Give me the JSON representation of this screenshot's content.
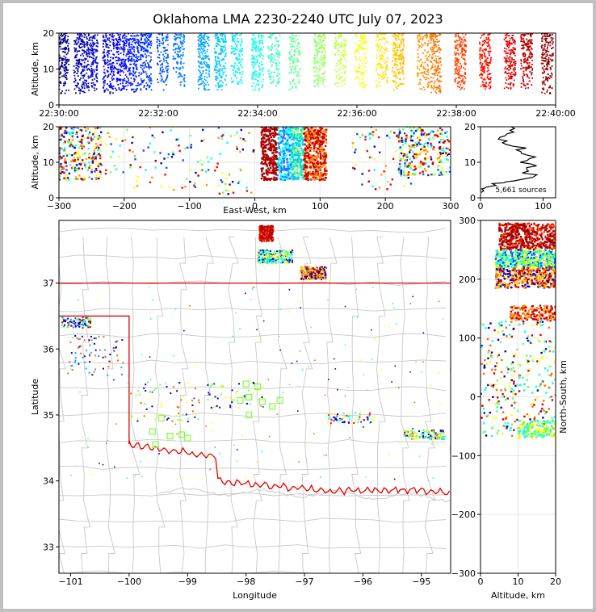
{
  "title": "Oklahoma LMA 2230-2240 UTC July 07, 2023",
  "chart_data": [
    {
      "panel": "altitude-time",
      "type": "scatter",
      "x_ticks": [
        "22:30:00",
        "22:32:00",
        "22:34:00",
        "22:36:00",
        "22:38:00",
        "22:40:00"
      ],
      "xlim": [
        "22:30:00",
        "22:40:00"
      ],
      "ylabel": "Altitude, km",
      "ylim": [
        0,
        20
      ],
      "y_ticks": [
        0,
        10,
        20
      ],
      "color_by": "time",
      "colormap": "jet",
      "bursts": [
        {
          "t": "22:30:05",
          "alt_range": [
            3,
            20
          ],
          "count": "high"
        },
        {
          "t": "22:30:25",
          "alt_range": [
            3,
            20
          ],
          "count": "high"
        },
        {
          "t": "22:30:40",
          "alt_range": [
            4,
            20
          ],
          "count": "high"
        },
        {
          "t": "22:31:00",
          "alt_range": [
            3,
            20
          ],
          "count": "high"
        },
        {
          "t": "22:31:15",
          "alt_range": [
            4,
            20
          ],
          "count": "high"
        },
        {
          "t": "22:31:30",
          "alt_range": [
            3,
            20
          ],
          "count": "high"
        },
        {
          "t": "22:31:45",
          "alt_range": [
            4,
            20
          ],
          "count": "high"
        },
        {
          "t": "22:32:05",
          "alt_range": [
            4,
            20
          ],
          "count": "medium"
        },
        {
          "t": "22:32:25",
          "alt_range": [
            5,
            20
          ],
          "count": "medium"
        },
        {
          "t": "22:32:55",
          "alt_range": [
            4,
            20
          ],
          "count": "high"
        },
        {
          "t": "22:33:15",
          "alt_range": [
            4,
            20
          ],
          "count": "high"
        },
        {
          "t": "22:33:35",
          "alt_range": [
            5,
            20
          ],
          "count": "medium"
        },
        {
          "t": "22:34:00",
          "alt_range": [
            4,
            20
          ],
          "count": "high"
        },
        {
          "t": "22:34:20",
          "alt_range": [
            5,
            20
          ],
          "count": "medium"
        },
        {
          "t": "22:34:45",
          "alt_range": [
            4,
            20
          ],
          "count": "medium"
        },
        {
          "t": "22:35:15",
          "alt_range": [
            5,
            20
          ],
          "count": "high"
        },
        {
          "t": "22:35:40",
          "alt_range": [
            5,
            20
          ],
          "count": "medium"
        },
        {
          "t": "22:36:05",
          "alt_range": [
            4,
            20
          ],
          "count": "medium"
        },
        {
          "t": "22:36:30",
          "alt_range": [
            5,
            20
          ],
          "count": "medium"
        },
        {
          "t": "22:36:50",
          "alt_range": [
            4,
            20
          ],
          "count": "high"
        },
        {
          "t": "22:37:20",
          "alt_range": [
            4,
            20
          ],
          "count": "medium"
        },
        {
          "t": "22:37:35",
          "alt_range": [
            3,
            20
          ],
          "count": "high"
        },
        {
          "t": "22:38:05",
          "alt_range": [
            4,
            20
          ],
          "count": "high"
        },
        {
          "t": "22:38:35",
          "alt_range": [
            4,
            20
          ],
          "count": "high"
        },
        {
          "t": "22:39:05",
          "alt_range": [
            4,
            20
          ],
          "count": "high"
        },
        {
          "t": "22:39:25",
          "alt_range": [
            4,
            20
          ],
          "count": "high"
        },
        {
          "t": "22:39:50",
          "alt_range": [
            3,
            20
          ],
          "count": "high"
        }
      ]
    },
    {
      "panel": "altitude-eastwest",
      "type": "scatter",
      "xlabel": "East-West, km",
      "xlim": [
        -300,
        300
      ],
      "x_ticks": [
        -300,
        -200,
        -100,
        0,
        100,
        200,
        300
      ],
      "ylabel": "Altitude, km",
      "ylim": [
        0,
        20
      ],
      "y_ticks": [
        0,
        10,
        20
      ],
      "grid": true,
      "clusters": [
        {
          "x_range": [
            -300,
            -235
          ],
          "alt_range": [
            5,
            20
          ],
          "density": "high"
        },
        {
          "x_range": [
            -230,
            -100
          ],
          "alt_range": [
            2,
            20
          ],
          "density": "low"
        },
        {
          "x_range": [
            -100,
            0
          ],
          "alt_range": [
            1,
            20
          ],
          "density": "low"
        },
        {
          "x_range": [
            10,
            110
          ],
          "alt_range": [
            5,
            20
          ],
          "density": "very high"
        },
        {
          "x_range": [
            150,
            240
          ],
          "alt_range": [
            2,
            20
          ],
          "density": "low"
        },
        {
          "x_range": [
            220,
            300
          ],
          "alt_range": [
            6,
            20
          ],
          "density": "high"
        }
      ]
    },
    {
      "panel": "source-altitude-histogram",
      "type": "line",
      "xlim": [
        0,
        120
      ],
      "x_ticks": [
        0,
        100
      ],
      "ylim": [
        0,
        20
      ],
      "y_ticks": [
        0,
        10,
        20
      ],
      "annotation": "5,661 sources",
      "profile": [
        [
          0,
          1.5
        ],
        [
          5,
          2.5
        ],
        [
          12,
          3
        ],
        [
          22,
          4
        ],
        [
          40,
          4.5
        ],
        [
          62,
          5
        ],
        [
          88,
          6.5
        ],
        [
          70,
          7
        ],
        [
          75,
          8
        ],
        [
          85,
          9
        ],
        [
          68,
          10
        ],
        [
          78,
          11
        ],
        [
          80,
          12
        ],
        [
          60,
          13
        ],
        [
          70,
          14
        ],
        [
          45,
          15
        ],
        [
          40,
          16
        ],
        [
          30,
          17
        ],
        [
          38,
          18
        ],
        [
          50,
          19
        ],
        [
          45,
          20
        ]
      ]
    },
    {
      "panel": "plan-view",
      "type": "scatter",
      "xlabel": "Longitude",
      "ylabel": "Latitude",
      "xlim": [
        -101.2,
        -94.5
      ],
      "ylim": [
        32.6,
        37.95
      ],
      "x_ticks": [
        -101,
        -100,
        -99,
        -98,
        -97,
        -96,
        -95
      ],
      "y_ticks": [
        33,
        34,
        35,
        36,
        37
      ],
      "x_ticklabels": [
        "−101",
        "−100",
        "−99",
        "−98",
        "−97",
        "−96",
        "−95"
      ],
      "stations": [
        [
          -98.0,
          35.47
        ],
        [
          -97.8,
          35.43
        ],
        [
          -97.95,
          35.27
        ],
        [
          -97.72,
          35.2
        ],
        [
          -97.55,
          35.13
        ],
        [
          -97.42,
          35.22
        ],
        [
          -98.1,
          35.22
        ],
        [
          -97.95,
          35.0
        ],
        [
          -99.45,
          34.95
        ],
        [
          -99.6,
          34.75
        ],
        [
          -99.3,
          34.68
        ],
        [
          -99.55,
          34.55
        ],
        [
          -99.1,
          34.7
        ],
        [
          -99.0,
          34.65
        ]
      ],
      "station_color": "#7fff3a",
      "state_border_color": "#e00000",
      "county_line_color": "#c8c8c8"
    },
    {
      "panel": "northsouth-altitude",
      "type": "scatter",
      "xlabel": "Altitude, km",
      "ylabel": "North-South, km",
      "xlim": [
        0,
        20
      ],
      "ylim": [
        -300,
        300
      ],
      "x_ticks": [
        0,
        10,
        20
      ],
      "y_ticks": [
        -300,
        -200,
        -100,
        0,
        100,
        200,
        300
      ],
      "grid": true
    }
  ]
}
